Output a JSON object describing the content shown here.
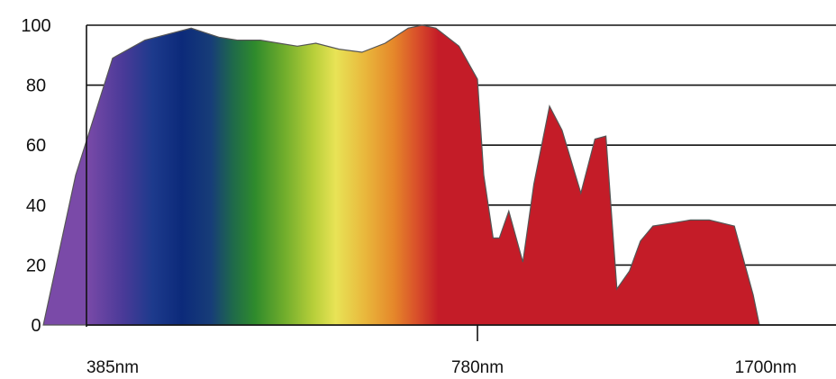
{
  "chart_data": {
    "type": "area",
    "title": "",
    "xlabel": "",
    "ylabel": "",
    "ylim": [
      0,
      100
    ],
    "y_ticks": [
      "0",
      "20",
      "40",
      "60",
      "80",
      "100"
    ],
    "x_ticks": [
      "385nm",
      "780nm",
      "1700nm"
    ],
    "x_tick_values": [
      385,
      780,
      1700
    ],
    "grid": "horizontal",
    "fill": "visible-spectrum gradient from 385nm to ~780nm, solid red beyond",
    "colors": {
      "violet": "#5a3a9a",
      "blue": "#0d2d7e",
      "green": "#2f8b2c",
      "yellow": "#e8e356",
      "orange": "#e58a2b",
      "red": "#c41c28",
      "grid": "#111111"
    },
    "series": [
      {
        "x": [
          310,
          345,
          385,
          420,
          470,
          500,
          520,
          545,
          565,
          585,
          605,
          630,
          655,
          680,
          705,
          720,
          735,
          760,
          780,
          800,
          830,
          850,
          880,
          925,
          960,
          1010,
          1050,
          1110,
          1155,
          1190,
          1225,
          1265,
          1300,
          1340,
          1400,
          1460,
          1520,
          1600,
          1660,
          1680
        ],
        "y": [
          0,
          50,
          89,
          95,
          99,
          96,
          95,
          95,
          94,
          93,
          94,
          92,
          91,
          94,
          99,
          100,
          99,
          93,
          82,
          50,
          29,
          29,
          38,
          21,
          47,
          73,
          65,
          44,
          62,
          63,
          12,
          18,
          28,
          33,
          34,
          35,
          35,
          33,
          10,
          0
        ]
      }
    ]
  }
}
